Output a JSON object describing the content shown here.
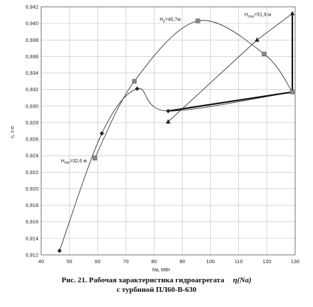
{
  "chart_data": {
    "type": "line",
    "xlabel": "Nа, МВт",
    "ylabel": "η, о.е.",
    "xlim": [
      40,
      130
    ],
    "ylim": [
      0.912,
      0.942
    ],
    "x_ticks": [
      40,
      50,
      60,
      70,
      80,
      90,
      100,
      110,
      120,
      130
    ],
    "x_tick_labels": [
      "40",
      "50",
      "60",
      "70",
      "80",
      "90",
      "100",
      "110",
      "120",
      "130"
    ],
    "y_ticks": [
      0.912,
      0.914,
      0.916,
      0.918,
      0.92,
      0.922,
      0.924,
      0.926,
      0.928,
      0.93,
      0.932,
      0.934,
      0.936,
      0.938,
      0.94,
      0.942
    ],
    "y_tick_labels": [
      "0,912",
      "0,914",
      "0,916",
      "0,918",
      "0,920",
      "0,922",
      "0,924",
      "0,926",
      "0,928",
      "0,930",
      "0,932",
      "0,934",
      "0,936",
      "0,938",
      "0,940",
      "0,942"
    ],
    "grid": true,
    "series": [
      {
        "marker": "diamond",
        "line": "thin",
        "points": [
          [
            46.5,
            0.9125
          ],
          [
            61.5,
            0.9267
          ],
          [
            74,
            0.9321
          ],
          [
            85,
            0.9294
          ],
          [
            129,
            0.9317
          ]
        ]
      },
      {
        "marker": "square",
        "line": "thin",
        "points": [
          [
            59,
            0.9237
          ],
          [
            73,
            0.933
          ],
          [
            95.5,
            0.9403
          ],
          [
            119,
            0.9363
          ],
          [
            129,
            0.9317
          ]
        ]
      },
      {
        "marker": "triangle",
        "line": "thin",
        "points": [
          [
            85,
            0.9281
          ],
          [
            116.5,
            0.938
          ],
          [
            129,
            0.9412
          ],
          [
            129,
            0.9317
          ]
        ]
      }
    ],
    "bold_segments": [
      [
        [
          85,
          0.9294
        ],
        [
          129,
          0.9317
        ]
      ],
      [
        [
          129,
          0.9412
        ],
        [
          129,
          0.9317
        ]
      ]
    ],
    "annotations": [
      {
        "text": "Hmin=32,6 м",
        "main": "H",
        "sub": "min",
        "rest": "=32,6 м",
        "x": 47,
        "y": 0.9232
      },
      {
        "text": "Hp=40,7м",
        "main": "H",
        "sub": "p",
        "rest": "=40,7м",
        "x": 82,
        "y": 0.9403
      },
      {
        "text": "Hmax=51,9 м",
        "main": "H",
        "sub": "max",
        "rest": "=51,9 м",
        "x": 112,
        "y": 0.9409
      }
    ]
  },
  "caption": {
    "line1": "Рис. 21. Рабочая характеристика гидроагрегата",
    "symbol": "η(Nа)",
    "line2": "с турбиной ПЛ60-В-630"
  }
}
